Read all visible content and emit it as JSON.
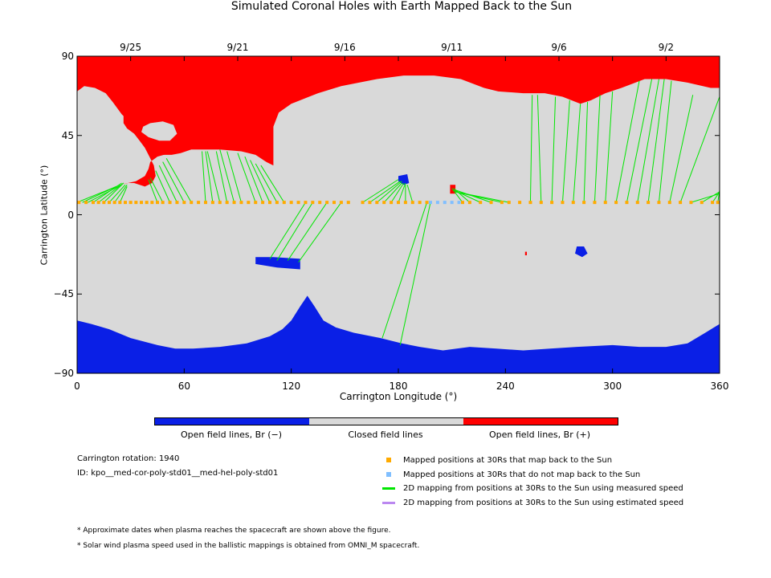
{
  "colors": {
    "open_neg": "#0a1fe6",
    "closed": "#d9d9d9",
    "open_pos": "#ff0000",
    "mapped_back": "#ffaa00",
    "not_mapped": "#80bfff",
    "measured_speed": "#00e600",
    "estimated_speed": "#bb88f0"
  },
  "chart_data": {
    "type": "heatmap",
    "title": "Simulated Coronal Holes with Earth Mapped Back to the Sun",
    "xlabel": "Carrington Longitude (°)",
    "ylabel": "Carrington Latitude (°)",
    "xlim": [
      0,
      360
    ],
    "ylim": [
      -90,
      90
    ],
    "x_ticks": [
      "0",
      "60",
      "120",
      "180",
      "240",
      "300",
      "360"
    ],
    "y_ticks": [
      "90",
      "45",
      "0",
      "−45",
      "−90"
    ],
    "top_date_ticks": [
      {
        "label": "9/25",
        "lon": 30
      },
      {
        "label": "9/21",
        "lon": 90
      },
      {
        "label": "9/16",
        "lon": 150
      },
      {
        "label": "9/11",
        "lon": 210
      },
      {
        "label": "9/6",
        "lon": 270
      },
      {
        "label": "9/2",
        "lon": 330
      }
    ],
    "colorbar": {
      "labels": [
        "Open field lines, Br (−)",
        "Closed field lines",
        "Open field lines, Br (+)"
      ]
    },
    "regions": {
      "north_positive_hole": [
        [
          0,
          70
        ],
        [
          4,
          73
        ],
        [
          10,
          72
        ],
        [
          16,
          69
        ],
        [
          20,
          64
        ],
        [
          25,
          57
        ],
        [
          30,
          52
        ],
        [
          35,
          47
        ],
        [
          40,
          41
        ],
        [
          43,
          36
        ],
        [
          48,
          34
        ],
        [
          53,
          34
        ],
        [
          58,
          35
        ],
        [
          64,
          37
        ],
        [
          70,
          37
        ],
        [
          80,
          37
        ],
        [
          92,
          36
        ],
        [
          100,
          34
        ],
        [
          106,
          30
        ],
        [
          110,
          28
        ],
        [
          110,
          42
        ],
        [
          110,
          50
        ],
        [
          113,
          58
        ],
        [
          120,
          63
        ],
        [
          135,
          69
        ],
        [
          148,
          73
        ],
        [
          168,
          77
        ],
        [
          183,
          79
        ],
        [
          200,
          79
        ],
        [
          215,
          77
        ],
        [
          228,
          72
        ],
        [
          236,
          70
        ],
        [
          250,
          69
        ],
        [
          262,
          69
        ],
        [
          272,
          67
        ],
        [
          282,
          63
        ],
        [
          288,
          65
        ],
        [
          296,
          69
        ],
        [
          305,
          72
        ],
        [
          318,
          77
        ],
        [
          330,
          77
        ],
        [
          342,
          75
        ],
        [
          355,
          72
        ],
        [
          360,
          72
        ],
        [
          360,
          90
        ],
        [
          0,
          90
        ]
      ],
      "north_hole_tongue": [
        [
          24,
          17
        ],
        [
          28,
          18
        ],
        [
          32,
          18
        ],
        [
          38,
          16
        ],
        [
          42,
          18
        ],
        [
          44,
          22
        ],
        [
          43,
          28
        ],
        [
          40,
          34
        ],
        [
          38,
          38
        ],
        [
          35,
          42
        ],
        [
          32,
          46
        ],
        [
          28,
          49
        ],
        [
          26,
          52
        ],
        [
          26,
          56
        ],
        [
          30,
          58
        ],
        [
          34,
          56
        ],
        [
          36,
          51
        ],
        [
          40,
          47
        ],
        [
          44,
          43
        ],
        [
          48,
          40
        ],
        [
          52,
          38
        ],
        [
          52,
          35
        ],
        [
          45,
          33
        ],
        [
          41,
          30
        ],
        [
          40,
          26
        ],
        [
          38,
          22
        ],
        [
          33,
          19
        ]
      ],
      "tongue_gap": [
        [
          36,
          47
        ],
        [
          40,
          44
        ],
        [
          46,
          42
        ],
        [
          52,
          42
        ],
        [
          56,
          46
        ],
        [
          54,
          51
        ],
        [
          48,
          53
        ],
        [
          41,
          52
        ],
        [
          37,
          50
        ]
      ],
      "south_negative_hole": [
        [
          0,
          -60
        ],
        [
          8,
          -62
        ],
        [
          18,
          -65
        ],
        [
          30,
          -70
        ],
        [
          45,
          -74
        ],
        [
          55,
          -76
        ],
        [
          65,
          -76
        ],
        [
          80,
          -75
        ],
        [
          95,
          -73
        ],
        [
          108,
          -69
        ],
        [
          115,
          -65
        ],
        [
          120,
          -60
        ],
        [
          125,
          -52
        ],
        [
          129,
          -46
        ],
        [
          133,
          -52
        ],
        [
          138,
          -60
        ],
        [
          145,
          -64
        ],
        [
          155,
          -67
        ],
        [
          170,
          -70
        ],
        [
          182,
          -73
        ],
        [
          192,
          -75
        ],
        [
          205,
          -77
        ],
        [
          220,
          -75
        ],
        [
          235,
          -76
        ],
        [
          250,
          -77
        ],
        [
          265,
          -76
        ],
        [
          280,
          -75
        ],
        [
          300,
          -74
        ],
        [
          315,
          -75
        ],
        [
          330,
          -75
        ],
        [
          342,
          -73
        ],
        [
          352,
          -67
        ],
        [
          360,
          -62
        ],
        [
          360,
          -90
        ],
        [
          0,
          -90
        ]
      ],
      "blue_patches": [
        [
          [
            100,
            -24
          ],
          [
            110,
            -24
          ],
          [
            125,
            -25
          ],
          [
            125,
            -31
          ],
          [
            112,
            -30
          ],
          [
            100,
            -28
          ]
        ],
        [
          [
            180,
            22
          ],
          [
            185,
            23
          ],
          [
            186,
            18
          ],
          [
            183,
            17
          ],
          [
            180,
            19
          ]
        ],
        [
          [
            280,
            -18
          ],
          [
            284,
            -18
          ],
          [
            286,
            -22
          ],
          [
            283,
            -24
          ],
          [
            279,
            -22
          ]
        ]
      ],
      "red_patches": [
        [
          [
            209,
            17
          ],
          [
            212,
            17
          ],
          [
            212,
            12
          ],
          [
            209,
            12
          ]
        ],
        [
          [
            251,
            -21
          ],
          [
            252,
            -21
          ],
          [
            252,
            -23
          ],
          [
            251,
            -23
          ]
        ]
      ]
    },
    "mapped_points_lat": 7,
    "mapped_points_lon_mapped_back": [
      1,
      5,
      9,
      12,
      15,
      18,
      21,
      24,
      27,
      30,
      33,
      36,
      39,
      42,
      45,
      48,
      52,
      56,
      60,
      64,
      68,
      72,
      76,
      80,
      84,
      88,
      92,
      96,
      100,
      104,
      108,
      112,
      116,
      120,
      124,
      128,
      132,
      136,
      140,
      144,
      148,
      152,
      160,
      164,
      168,
      172,
      176,
      180,
      184,
      188,
      192,
      196,
      216,
      220,
      226,
      232,
      238,
      242,
      248,
      254,
      260,
      266,
      272,
      278,
      284,
      290,
      296,
      302,
      308,
      314,
      320,
      326,
      332,
      338,
      344,
      350,
      356,
      359
    ],
    "mapped_points_lon_not_mapped": [
      198,
      202,
      206,
      210,
      214
    ],
    "measured_speed_lines": [
      {
        "from": [
          0,
          7
        ],
        "to": [
          22,
          16
        ]
      },
      {
        "from": [
          3,
          7
        ],
        "to": [
          24,
          17
        ]
      },
      {
        "from": [
          6,
          7
        ],
        "to": [
          25,
          17
        ]
      },
      {
        "from": [
          9,
          7
        ],
        "to": [
          25,
          18
        ]
      },
      {
        "from": [
          12,
          7
        ],
        "to": [
          26,
          18
        ]
      },
      {
        "from": [
          15,
          7
        ],
        "to": [
          26,
          18
        ]
      },
      {
        "from": [
          18,
          7
        ],
        "to": [
          27,
          17
        ]
      },
      {
        "from": [
          21,
          7
        ],
        "to": [
          28,
          17
        ]
      },
      {
        "from": [
          24,
          7
        ],
        "to": [
          28,
          16
        ]
      },
      {
        "from": [
          45,
          7
        ],
        "to": [
          40,
          20
        ]
      },
      {
        "from": [
          48,
          7
        ],
        "to": [
          41,
          21
        ]
      },
      {
        "from": [
          52,
          7
        ],
        "to": [
          44,
          25
        ]
      },
      {
        "from": [
          56,
          7
        ],
        "to": [
          46,
          28
        ]
      },
      {
        "from": [
          60,
          7
        ],
        "to": [
          48,
          30
        ]
      },
      {
        "from": [
          64,
          7
        ],
        "to": [
          50,
          32
        ]
      },
      {
        "from": [
          72,
          7
        ],
        "to": [
          70,
          36
        ]
      },
      {
        "from": [
          76,
          7
        ],
        "to": [
          72,
          36
        ]
      },
      {
        "from": [
          80,
          7
        ],
        "to": [
          73,
          36
        ]
      },
      {
        "from": [
          84,
          7
        ],
        "to": [
          78,
          36
        ]
      },
      {
        "from": [
          88,
          7
        ],
        "to": [
          80,
          37
        ]
      },
      {
        "from": [
          92,
          7
        ],
        "to": [
          84,
          36
        ]
      },
      {
        "from": [
          100,
          7
        ],
        "to": [
          90,
          35
        ]
      },
      {
        "from": [
          104,
          7
        ],
        "to": [
          94,
          33
        ]
      },
      {
        "from": [
          108,
          7
        ],
        "to": [
          97,
          31
        ]
      },
      {
        "from": [
          112,
          7
        ],
        "to": [
          100,
          29
        ]
      },
      {
        "from": [
          116,
          7
        ],
        "to": [
          103,
          28
        ]
      },
      {
        "from": [
          128,
          7
        ],
        "to": [
          108,
          -25
        ]
      },
      {
        "from": [
          132,
          7
        ],
        "to": [
          112,
          -26
        ]
      },
      {
        "from": [
          140,
          7
        ],
        "to": [
          118,
          -26
        ]
      },
      {
        "from": [
          148,
          7
        ],
        "to": [
          124,
          -27
        ]
      },
      {
        "from": [
          160,
          7
        ],
        "to": [
          180,
          20
        ]
      },
      {
        "from": [
          164,
          7
        ],
        "to": [
          181,
          19
        ]
      },
      {
        "from": [
          168,
          7
        ],
        "to": [
          182,
          19
        ]
      },
      {
        "from": [
          172,
          7
        ],
        "to": [
          182,
          18
        ]
      },
      {
        "from": [
          176,
          7
        ],
        "to": [
          183,
          18
        ]
      },
      {
        "from": [
          180,
          7
        ],
        "to": [
          184,
          18
        ]
      },
      {
        "from": [
          184,
          7
        ],
        "to": [
          184,
          17
        ]
      },
      {
        "from": [
          188,
          7
        ],
        "to": [
          185,
          17
        ]
      },
      {
        "from": [
          196,
          7
        ],
        "to": [
          171,
          -70
        ]
      },
      {
        "from": [
          198,
          7
        ],
        "to": [
          181,
          -74
        ]
      },
      {
        "from": [
          216,
          7
        ],
        "to": [
          210,
          15
        ]
      },
      {
        "from": [
          220,
          7
        ],
        "to": [
          211,
          15
        ]
      },
      {
        "from": [
          226,
          7
        ],
        "to": [
          211,
          14
        ]
      },
      {
        "from": [
          232,
          7
        ],
        "to": [
          212,
          14
        ]
      },
      {
        "from": [
          238,
          7
        ],
        "to": [
          212,
          13
        ]
      },
      {
        "from": [
          242,
          7
        ],
        "to": [
          212,
          13
        ]
      },
      {
        "from": [
          254,
          7
        ],
        "to": [
          255,
          68
        ]
      },
      {
        "from": [
          260,
          7
        ],
        "to": [
          258,
          68
        ]
      },
      {
        "from": [
          266,
          7
        ],
        "to": [
          268,
          67
        ]
      },
      {
        "from": [
          272,
          7
        ],
        "to": [
          276,
          65
        ]
      },
      {
        "from": [
          278,
          7
        ],
        "to": [
          282,
          63
        ]
      },
      {
        "from": [
          284,
          7
        ],
        "to": [
          286,
          64
        ]
      },
      {
        "from": [
          290,
          7
        ],
        "to": [
          293,
          68
        ]
      },
      {
        "from": [
          296,
          7
        ],
        "to": [
          300,
          70
        ]
      },
      {
        "from": [
          302,
          7
        ],
        "to": [
          315,
          76
        ]
      },
      {
        "from": [
          308,
          7
        ],
        "to": [
          322,
          77
        ]
      },
      {
        "from": [
          314,
          7
        ],
        "to": [
          326,
          77
        ]
      },
      {
        "from": [
          320,
          7
        ],
        "to": [
          329,
          77
        ]
      },
      {
        "from": [
          326,
          7
        ],
        "to": [
          333,
          76
        ]
      },
      {
        "from": [
          332,
          7
        ],
        "to": [
          345,
          68
        ]
      },
      {
        "from": [
          338,
          7
        ],
        "to": [
          360,
          67
        ]
      },
      {
        "from": [
          344,
          7
        ],
        "to": [
          360,
          12
        ]
      },
      {
        "from": [
          350,
          7
        ],
        "to": [
          360,
          13
        ]
      },
      {
        "from": [
          356,
          7
        ],
        "to": [
          360,
          13
        ]
      },
      {
        "from": [
          359,
          7
        ],
        "to": [
          360,
          14
        ]
      }
    ]
  },
  "info": {
    "rotation": "Carrington rotation: 1940",
    "id": "ID: kpo__med-cor-poly-std01__med-hel-poly-std01"
  },
  "legend": [
    {
      "label": "Mapped positions at 30Rs that map back to the Sun",
      "kind": "square",
      "color_key": "mapped_back"
    },
    {
      "label": "Mapped positions at 30Rs that do not map back to the Sun",
      "kind": "square",
      "color_key": "not_mapped"
    },
    {
      "label": "2D mapping from positions at 30Rs to the Sun using measured speed",
      "kind": "line",
      "color_key": "measured_speed"
    },
    {
      "label": "2D mapping from positions at 30Rs to the Sun using estimated speed",
      "kind": "line",
      "color_key": "estimated_speed"
    }
  ],
  "notes": [
    "* Approximate dates when plasma reaches the spacecraft are shown above the figure.",
    "* Solar wind plasma speed used in the ballistic mappings is obtained from OMNI_M spacecraft."
  ]
}
